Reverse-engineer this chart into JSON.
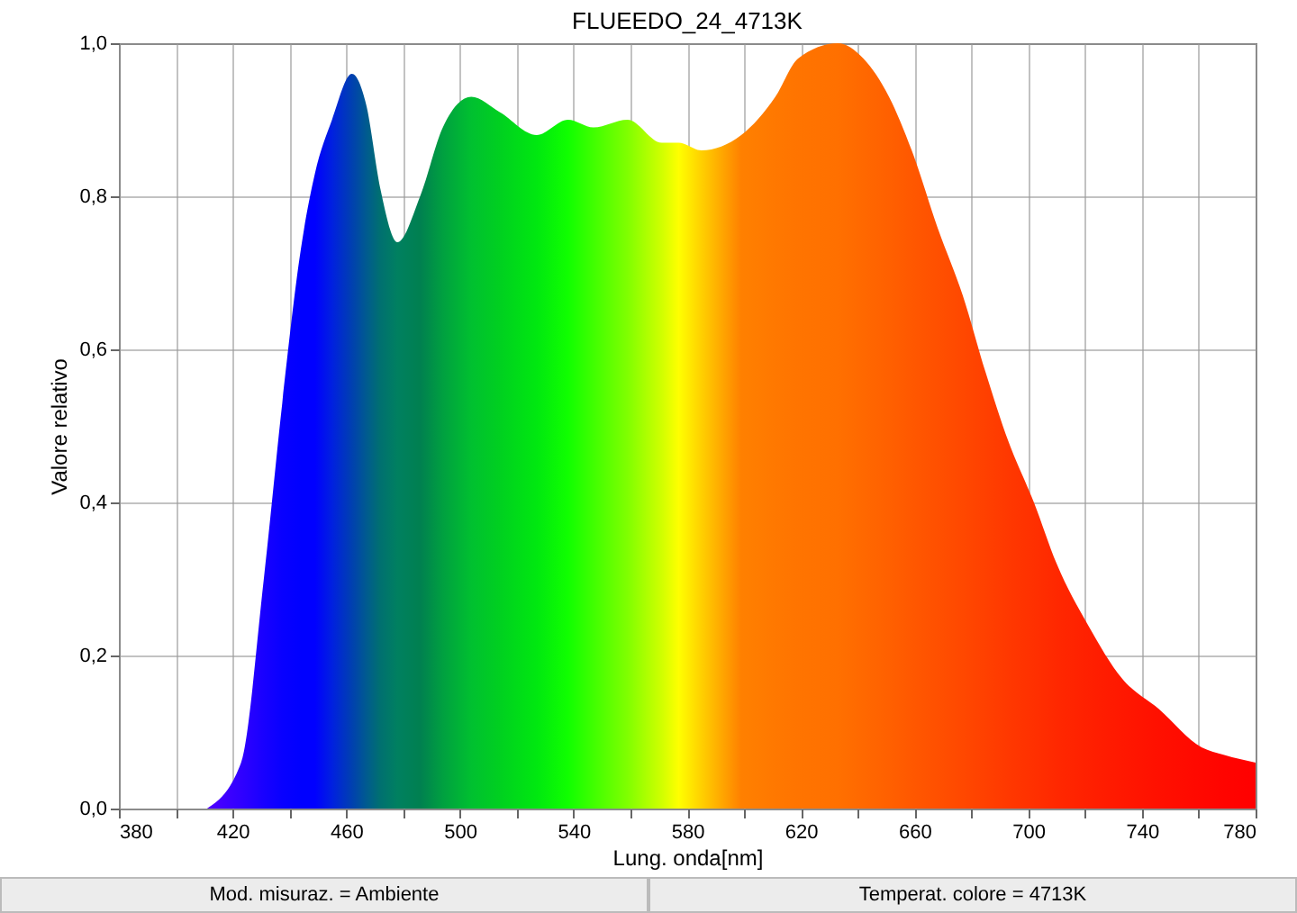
{
  "chart_data": {
    "type": "area",
    "title": "FLUEEDO_24_4713K",
    "xlabel": "Lung. onda[nm]",
    "ylabel": "Valore relativo",
    "xlim": [
      380,
      780
    ],
    "ylim": [
      0,
      1
    ],
    "xticks": [
      380,
      {
        "value": 400,
        "label": null
      },
      420,
      {
        "value": 440,
        "label": null
      },
      460,
      {
        "value": 480,
        "label": null
      },
      500,
      {
        "value": 520,
        "label": null
      },
      540,
      {
        "value": 560,
        "label": null
      },
      580,
      {
        "value": 600,
        "label": null
      },
      620,
      {
        "value": 640,
        "label": null
      },
      660,
      {
        "value": 680,
        "label": null
      },
      700,
      {
        "value": 720,
        "label": null
      },
      740,
      {
        "value": 760,
        "label": null
      },
      780
    ],
    "yticks": [
      {
        "value": 0,
        "label": "0,0"
      },
      {
        "value": 0.2,
        "label": "0,2"
      },
      {
        "value": 0.4,
        "label": "0,4"
      },
      {
        "value": 0.6,
        "label": "0,6"
      },
      {
        "value": 0.8,
        "label": "0,8"
      },
      {
        "value": 1,
        "label": "1,0"
      }
    ],
    "grid": true,
    "series": [
      {
        "x": [
          411,
          423,
          431,
          437.5,
          444,
          449,
          455,
          462,
          467,
          472,
          478,
          486,
          494,
          504,
          514,
          527,
          538,
          547,
          559,
          571,
          577,
          585,
          599,
          611,
          619,
          633,
          642,
          651,
          659,
          668,
          677,
          685,
          693,
          702,
          710,
          721,
          733,
          746,
          761,
          769,
          780
        ],
        "values": [
          0,
          0.06,
          0.3,
          0.53,
          0.73,
          0.83,
          0.9,
          0.96,
          0.92,
          0.81,
          0.74,
          0.8,
          0.89,
          0.93,
          0.91,
          0.88,
          0.9,
          0.89,
          0.9,
          0.87,
          0.87,
          0.86,
          0.88,
          0.93,
          0.98,
          1.0,
          0.98,
          0.93,
          0.86,
          0.76,
          0.67,
          0.57,
          0.48,
          0.4,
          0.32,
          0.24,
          0.17,
          0.13,
          0.08,
          0.07,
          0.06
        ],
        "colors": [
          "#5000ff",
          "#3000ff",
          "#1800ff",
          "#0800ff",
          "#0000ff",
          "#0000ff",
          "#0020e0",
          "#0040b0",
          "#005a90",
          "#007070",
          "#008060",
          "#008050",
          "#00a040",
          "#00c030",
          "#00d020",
          "#00e810",
          "#10ff00",
          "#40ff00",
          "#80ff00",
          "#d0ff00",
          "#ffff00",
          "#ffd000",
          "#ff8000",
          "#ff7800",
          "#ff7400",
          "#ff7000",
          "#ff6800",
          "#ff6000",
          "#ff5800",
          "#ff5000",
          "#ff4800",
          "#ff4000",
          "#ff3800",
          "#ff3000",
          "#ff2800",
          "#ff2000",
          "#ff1800",
          "#ff1000",
          "#ff0800",
          "#ff0400",
          "#ff0000"
        ]
      }
    ],
    "annotations": [
      "Mod. misuraz. = Ambiente",
      "Temperat. colore = 4713K"
    ]
  }
}
